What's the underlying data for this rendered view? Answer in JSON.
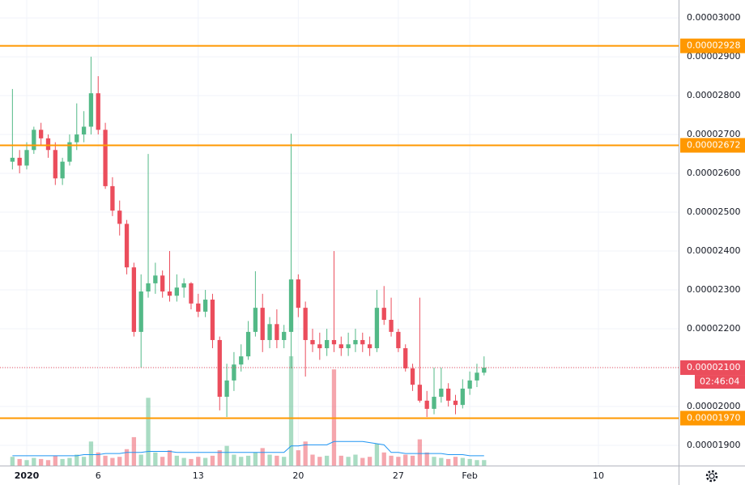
{
  "chart_data": {
    "type": "candlestick",
    "xlim": [
      -0.87,
      46.61
    ],
    "xticks": [
      {
        "value": 1,
        "label": "2020"
      },
      6,
      13,
      20,
      27,
      {
        "value": 32,
        "label": "Feb"
      },
      {
        "value": 41,
        "label": "10"
      }
    ],
    "ylim": [
      1.848e-05,
      3.046e-05
    ],
    "yticks": [
      {
        "value": 3e-05,
        "label": "0.00003000"
      },
      {
        "value": 2.9e-05,
        "label": "0.00002900"
      },
      {
        "value": 2.8e-05,
        "label": "0.00002800"
      },
      {
        "value": 2.7e-05,
        "label": "0.00002700"
      },
      {
        "value": 2.6e-05,
        "label": "0.00002600"
      },
      {
        "value": 2.5e-05,
        "label": "0.00002500"
      },
      {
        "value": 2.4e-05,
        "label": "0.00002400"
      },
      {
        "value": 2.3e-05,
        "label": "0.00002300"
      },
      {
        "value": 2.2e-05,
        "label": "0.00002200"
      },
      {
        "value": 2.1e-05,
        "label": "0.00002100"
      },
      {
        "value": 2e-05,
        "label": "0.00002000"
      },
      {
        "value": 1.9e-05,
        "label": "0.00001900"
      }
    ],
    "grid": true,
    "up_color": "#53b987",
    "down_color": "#eb4d5c",
    "candles": {
      "x": [
        0,
        0.5,
        1,
        1.5,
        2,
        2.5,
        3,
        3.5,
        4,
        4.5,
        5,
        5.5,
        6,
        6.5,
        7,
        7.5,
        8,
        8.5,
        9,
        9.5,
        10,
        10.5,
        11,
        11.5,
        12,
        12.5,
        13,
        13.5,
        14,
        14.5,
        15,
        15.5,
        16,
        16.5,
        17,
        17.5,
        18,
        18.5,
        19,
        19.5,
        20,
        20.5,
        21,
        21.5,
        22,
        22.5,
        23,
        23.5,
        24,
        24.5,
        25,
        25.5,
        26,
        26.5,
        27,
        27.5,
        28,
        28.5,
        29,
        29.5,
        30,
        30.5,
        31,
        31.5,
        32,
        32.5,
        33
      ],
      "open": [
        2.63e-05,
        2.64e-05,
        2.62e-05,
        2.66e-05,
        2.712e-05,
        2.69e-05,
        2.66e-05,
        2.587e-05,
        2.63e-05,
        2.68e-05,
        2.7e-05,
        2.72e-05,
        2.806e-05,
        2.712e-05,
        2.567e-05,
        2.504e-05,
        2.47e-05,
        2.358e-05,
        2.192e-05,
        2.296e-05,
        2.317e-05,
        2.337e-05,
        2.296e-05,
        2.285e-05,
        2.306e-05,
        2.317e-05,
        2.265e-05,
        2.244e-05,
        2.275e-05,
        2.171e-05,
        2.025e-05,
        2.067e-05,
        2.108e-05,
        2.129e-05,
        2.192e-05,
        2.254e-05,
        2.171e-05,
        2.212e-05,
        2.171e-05,
        2.192e-05,
        2.327e-05,
        2.254e-05,
        2.171e-05,
        2.16e-05,
        2.15e-05,
        2.171e-05,
        2.16e-05,
        2.15e-05,
        2.16e-05,
        2.171e-05,
        2.16e-05,
        2.15e-05,
        2.254e-05,
        2.223e-05,
        2.192e-05,
        2.15e-05,
        2.098e-05,
        2.056e-05,
        2.015e-05,
        1.994e-05,
        2.025e-05,
        2.046e-05,
        2.015e-05,
        2.004e-05,
        2.046e-05,
        2.067e-05,
        2.087e-05
      ],
      "high": [
        2.817e-05,
        2.66e-05,
        2.68e-05,
        2.72e-05,
        2.73e-05,
        2.7e-05,
        2.68e-05,
        2.64e-05,
        2.7e-05,
        2.78e-05,
        2.76e-05,
        2.9e-05,
        2.85e-05,
        2.73e-05,
        2.59e-05,
        2.53e-05,
        2.48e-05,
        2.37e-05,
        2.34e-05,
        2.65e-05,
        2.37e-05,
        2.35e-05,
        2.4e-05,
        2.34e-05,
        2.33e-05,
        2.32e-05,
        2.29e-05,
        2.3e-05,
        2.29e-05,
        2.18e-05,
        2.11e-05,
        2.14e-05,
        2.16e-05,
        2.22e-05,
        2.348e-05,
        2.29e-05,
        2.23e-05,
        2.25e-05,
        2.21e-05,
        2.702e-05,
        2.34e-05,
        2.27e-05,
        2.2e-05,
        2.19e-05,
        2.2e-05,
        2.4e-05,
        2.18e-05,
        2.19e-05,
        2.2e-05,
        2.19e-05,
        2.18e-05,
        2.3e-05,
        2.31e-05,
        2.28e-05,
        2.2e-05,
        2.16e-05,
        2.11e-05,
        2.28e-05,
        2.04e-05,
        2.1e-05,
        2.1e-05,
        2.06e-05,
        2.03e-05,
        2.07e-05,
        2.09e-05,
        2.11e-05,
        2.129e-05
      ],
      "low": [
        2.61e-05,
        2.6e-05,
        2.61e-05,
        2.65e-05,
        2.67e-05,
        2.64e-05,
        2.57e-05,
        2.57e-05,
        2.62e-05,
        2.66e-05,
        2.68e-05,
        2.7e-05,
        2.7e-05,
        2.56e-05,
        2.49e-05,
        2.44e-05,
        2.34e-05,
        2.18e-05,
        2.1e-05,
        2.28e-05,
        2.29e-05,
        2.28e-05,
        2.27e-05,
        2.27e-05,
        2.28e-05,
        2.25e-05,
        2.23e-05,
        2.23e-05,
        2.15e-05,
        1.99e-05,
        1.973e-05,
        2.04e-05,
        2.09e-05,
        2.12e-05,
        2.18e-05,
        2.14e-05,
        2.15e-05,
        2.15e-05,
        2.15e-05,
        2.098e-05,
        2.23e-05,
        2.077e-05,
        2.14e-05,
        2.12e-05,
        2.13e-05,
        2.14e-05,
        2.13e-05,
        2.13e-05,
        2.14e-05,
        2.14e-05,
        2.13e-05,
        2.14e-05,
        2.21e-05,
        2.18e-05,
        2.14e-05,
        2.09e-05,
        2.04e-05,
        2.01e-05,
        1.973e-05,
        1.98e-05,
        2.01e-05,
        2e-05,
        1.98e-05,
        1.995e-05,
        2.03e-05,
        2.05e-05,
        2.08e-05
      ],
      "close": [
        2.64e-05,
        2.62e-05,
        2.66e-05,
        2.712e-05,
        2.69e-05,
        2.66e-05,
        2.587e-05,
        2.63e-05,
        2.68e-05,
        2.7e-05,
        2.72e-05,
        2.806e-05,
        2.712e-05,
        2.567e-05,
        2.504e-05,
        2.47e-05,
        2.358e-05,
        2.192e-05,
        2.296e-05,
        2.317e-05,
        2.337e-05,
        2.296e-05,
        2.285e-05,
        2.306e-05,
        2.317e-05,
        2.265e-05,
        2.244e-05,
        2.275e-05,
        2.171e-05,
        2.025e-05,
        2.067e-05,
        2.108e-05,
        2.129e-05,
        2.192e-05,
        2.254e-05,
        2.171e-05,
        2.212e-05,
        2.171e-05,
        2.192e-05,
        2.327e-05,
        2.254e-05,
        2.171e-05,
        2.16e-05,
        2.15e-05,
        2.171e-05,
        2.16e-05,
        2.15e-05,
        2.16e-05,
        2.171e-05,
        2.16e-05,
        2.15e-05,
        2.254e-05,
        2.223e-05,
        2.192e-05,
        2.15e-05,
        2.098e-05,
        2.056e-05,
        2.015e-05,
        1.994e-05,
        2.025e-05,
        2.046e-05,
        2.015e-05,
        2.004e-05,
        2.046e-05,
        2.067e-05,
        2.087e-05,
        2.1e-05
      ],
      "volume": [
        8,
        6,
        5,
        7,
        6,
        5,
        9,
        6,
        7,
        10,
        8,
        22,
        12,
        9,
        7,
        8,
        15,
        26,
        10,
        62,
        12,
        8,
        14,
        9,
        7,
        6,
        8,
        7,
        9,
        14,
        18,
        10,
        8,
        9,
        12,
        16,
        10,
        9,
        8,
        100,
        14,
        22,
        10,
        8,
        9,
        88,
        9,
        8,
        10,
        7,
        8,
        20,
        12,
        9,
        8,
        10,
        9,
        24,
        12,
        8,
        7,
        6,
        8,
        7,
        6,
        5,
        5
      ],
      "volume_ma": [
        9,
        9,
        9,
        9,
        9,
        9,
        9,
        9,
        9,
        9,
        10,
        10,
        10,
        11,
        11,
        11,
        12,
        12,
        12,
        13,
        13,
        13,
        13,
        12,
        12,
        12,
        12,
        12,
        12,
        12,
        12,
        12,
        12,
        12,
        12,
        12,
        12,
        12,
        12,
        18,
        18,
        19,
        19,
        19,
        19,
        22,
        22,
        22,
        22,
        22,
        21,
        20,
        19,
        12,
        12,
        11,
        11,
        11,
        11,
        11,
        11,
        10,
        10,
        10,
        9,
        9,
        9
      ],
      "volume_ma_color": "#2196f3"
    },
    "levels": [
      {
        "value": 2.928e-05,
        "label": "0.00002928",
        "color": "#ff9800"
      },
      {
        "value": 2.672e-05,
        "label": "0.00002672",
        "color": "#ff9800"
      },
      {
        "value": 1.97e-05,
        "label": "0.00001970",
        "color": "#ff9800"
      }
    ],
    "last_price": {
      "value": 2.1e-05,
      "label": "0.00002100",
      "countdown": "02:46:04",
      "color": "#eb4d5c"
    }
  }
}
